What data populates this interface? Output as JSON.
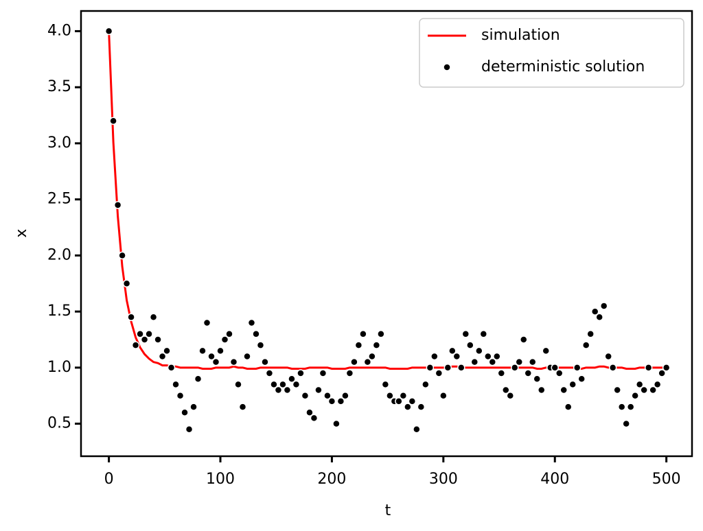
{
  "chart_data": {
    "type": "line",
    "xlabel": "t",
    "ylabel": "x",
    "x": [
      0,
      4,
      8,
      12,
      16,
      20,
      24,
      28,
      32,
      36,
      40,
      44,
      48,
      52,
      56,
      60,
      64,
      68,
      72,
      76,
      80,
      84,
      88,
      92,
      96,
      100,
      104,
      108,
      112,
      116,
      120,
      124,
      128,
      132,
      136,
      140,
      144,
      148,
      152,
      156,
      160,
      164,
      168,
      172,
      176,
      180,
      184,
      188,
      192,
      196,
      200,
      204,
      208,
      212,
      216,
      220,
      224,
      228,
      232,
      236,
      240,
      244,
      248,
      252,
      256,
      260,
      264,
      268,
      272,
      276,
      280,
      284,
      288,
      292,
      296,
      300,
      304,
      308,
      312,
      316,
      320,
      324,
      328,
      332,
      336,
      340,
      344,
      348,
      352,
      356,
      360,
      364,
      368,
      372,
      376,
      380,
      384,
      388,
      392,
      396,
      400,
      404,
      408,
      412,
      416,
      420,
      424,
      428,
      432,
      436,
      440,
      444,
      448,
      452,
      456,
      460,
      464,
      468,
      472,
      476,
      480,
      484,
      488,
      492,
      496,
      500
    ],
    "series": [
      {
        "name": "simulation",
        "color": "#ff0000",
        "style": "line",
        "values": [
          4.0,
          3.01,
          2.35,
          1.9,
          1.6,
          1.41,
          1.27,
          1.18,
          1.12,
          1.08,
          1.05,
          1.04,
          1.02,
          1.02,
          1.01,
          1.01,
          1.0,
          1.0,
          1.0,
          1.0,
          1.0,
          0.99,
          0.99,
          0.99,
          1.0,
          1.0,
          1.0,
          1.0,
          1.01,
          1.0,
          1.0,
          0.99,
          0.99,
          0.99,
          1.0,
          1.0,
          1.0,
          1.0,
          1.0,
          1.0,
          1.0,
          0.99,
          0.99,
          0.99,
          0.99,
          1.0,
          1.0,
          1.0,
          1.0,
          1.0,
          0.99,
          0.99,
          0.99,
          0.99,
          1.0,
          1.0,
          1.0,
          1.0,
          1.0,
          1.0,
          1.0,
          1.0,
          1.0,
          0.99,
          0.99,
          0.99,
          0.99,
          0.99,
          1.0,
          1.0,
          1.0,
          1.0,
          1.0,
          1.0,
          1.0,
          1.0,
          1.0,
          1.01,
          1.01,
          1.0,
          1.0,
          1.0,
          1.0,
          1.0,
          1.0,
          1.0,
          1.0,
          1.0,
          1.0,
          1.0,
          1.0,
          1.0,
          1.0,
          1.0,
          1.0,
          1.0,
          0.99,
          0.99,
          1.0,
          1.0,
          1.0,
          1.0,
          1.0,
          1.0,
          1.0,
          0.99,
          0.99,
          1.0,
          1.0,
          1.0,
          1.01,
          1.01,
          1.0,
          1.0,
          1.0,
          1.0,
          0.99,
          0.99,
          0.99,
          1.0,
          1.0,
          1.0,
          1.0,
          1.0,
          1.0,
          1.0
        ]
      },
      {
        "name": "deterministic solution",
        "color": "#000000",
        "style": "dots",
        "values": [
          4.0,
          3.2,
          2.45,
          2.0,
          1.75,
          1.45,
          1.2,
          1.3,
          1.25,
          1.3,
          1.45,
          1.25,
          1.1,
          1.15,
          1.0,
          0.85,
          0.75,
          0.6,
          0.45,
          0.65,
          0.9,
          1.15,
          1.4,
          1.1,
          1.05,
          1.15,
          1.25,
          1.3,
          1.05,
          0.85,
          0.65,
          1.1,
          1.4,
          1.3,
          1.2,
          1.05,
          0.95,
          0.85,
          0.8,
          0.85,
          0.8,
          0.9,
          0.85,
          0.95,
          0.75,
          0.6,
          0.55,
          0.8,
          0.95,
          0.75,
          0.7,
          0.5,
          0.7,
          0.75,
          0.95,
          1.05,
          1.2,
          1.3,
          1.05,
          1.1,
          1.2,
          1.3,
          0.85,
          0.75,
          0.7,
          0.7,
          0.75,
          0.65,
          0.7,
          0.45,
          0.65,
          0.85,
          1.0,
          1.1,
          0.95,
          0.75,
          1.0,
          1.15,
          1.1,
          1.0,
          1.3,
          1.2,
          1.05,
          1.15,
          1.3,
          1.1,
          1.05,
          1.1,
          0.95,
          0.8,
          0.75,
          1.0,
          1.05,
          1.25,
          0.95,
          1.05,
          0.9,
          0.8,
          1.15,
          1.0,
          1.0,
          0.95,
          0.8,
          0.65,
          0.85,
          1.0,
          0.9,
          1.2,
          1.3,
          1.5,
          1.45,
          1.55,
          1.1,
          1.0,
          0.8,
          0.65,
          0.5,
          0.65,
          0.75,
          0.85,
          0.8,
          1.0,
          0.8,
          0.85,
          0.95,
          1.0
        ]
      }
    ],
    "xlim": [
      -25,
      523
    ],
    "ylim": [
      0.21,
      4.18
    ],
    "xticks": [
      0,
      100,
      200,
      300,
      400,
      500
    ],
    "yticks": [
      0.5,
      {
        "value": 1,
        "label": "1.0"
      },
      1.5,
      {
        "value": 2,
        "label": "2.0"
      },
      2.5,
      {
        "value": 3,
        "label": "3.0"
      },
      3.5,
      {
        "value": 4,
        "label": "4.0"
      }
    ],
    "legend": "upper right"
  }
}
